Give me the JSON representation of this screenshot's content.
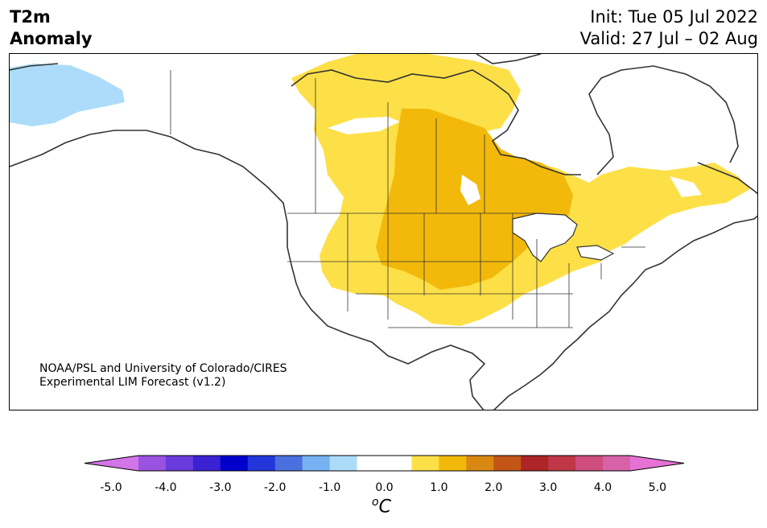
{
  "title": {
    "variable_line1": "T2m",
    "variable_line2": "Anomaly",
    "init": "Init: Tue 05 Jul 2022",
    "valid": "Valid: 27 Jul – 02 Aug"
  },
  "credit": {
    "line1": "NOAA/PSL and University of Colorado/CIRES",
    "line2": "Experimental LIM Forecast (v1.2)"
  },
  "map": {
    "region": "North America",
    "variable": "2-m temperature anomaly"
  },
  "colorbar": {
    "unit_base": "C",
    "unit_sup": "o",
    "ticks": [
      "-5.0",
      "-4.0",
      "-3.0",
      "-2.0",
      "-1.0",
      "0.0",
      "1.0",
      "2.0",
      "3.0",
      "4.0",
      "5.0"
    ],
    "bins": [
      {
        "color": "#d275e8"
      },
      {
        "color": "#9a52e0"
      },
      {
        "color": "#6a3bdc"
      },
      {
        "color": "#3a22d4"
      },
      {
        "color": "#0000cd"
      },
      {
        "color": "#2236da"
      },
      {
        "color": "#4a70e0"
      },
      {
        "color": "#76b2f2"
      },
      {
        "color": "#acdcfa"
      },
      {
        "color": "#ffffff"
      },
      {
        "color": "#ffffff"
      },
      {
        "color": "#fde047"
      },
      {
        "color": "#f2b90b"
      },
      {
        "color": "#d98812"
      },
      {
        "color": "#c35517"
      },
      {
        "color": "#ad2526"
      },
      {
        "color": "#c03848"
      },
      {
        "color": "#cd4e7c"
      },
      {
        "color": "#d762a8"
      },
      {
        "color": "#e672d5"
      }
    ]
  },
  "colors": {
    "anom_weak_warm": "#fde047",
    "anom_mod_warm": "#f2b90b",
    "anom_weak_cold": "#acdcfa"
  }
}
